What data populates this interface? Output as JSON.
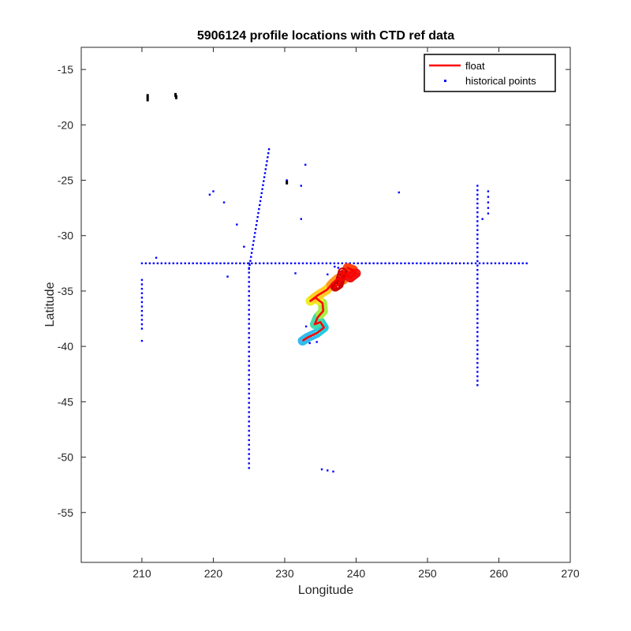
{
  "chart_data": {
    "type": "scatter",
    "title": "5906124 profile locations with CTD ref data",
    "xlabel": "Longitude",
    "ylabel": "Latitude",
    "xlim": [
      201.5,
      270
    ],
    "ylim": [
      -59.5,
      -13
    ],
    "xticks": [
      210,
      220,
      230,
      240,
      250,
      260,
      270
    ],
    "yticks": [
      -15,
      -20,
      -25,
      -30,
      -35,
      -40,
      -45,
      -50,
      -55
    ],
    "grid": false,
    "legend": {
      "placement": "top-right",
      "entries": [
        {
          "label": "float",
          "marker": "line",
          "color": "#ff0000"
        },
        {
          "label": "historical points",
          "marker": "dot",
          "color": "#0000ff"
        }
      ]
    },
    "series": [
      {
        "name": "float",
        "color": "#ff0000",
        "points": [
          [
            232.5,
            -39.5
          ],
          [
            233.2,
            -39.2
          ],
          [
            234.5,
            -38.8
          ],
          [
            235.5,
            -38.3
          ],
          [
            235.0,
            -37.8
          ],
          [
            234.2,
            -38.0
          ],
          [
            234.6,
            -37.4
          ],
          [
            235.4,
            -36.8
          ],
          [
            235.3,
            -36.1
          ],
          [
            234.3,
            -35.6
          ],
          [
            233.6,
            -35.9
          ],
          [
            234.6,
            -35.4
          ],
          [
            235.9,
            -34.9
          ],
          [
            236.7,
            -34.3
          ],
          [
            237.4,
            -33.9
          ],
          [
            238.2,
            -34.0
          ],
          [
            238.9,
            -33.5
          ],
          [
            239.6,
            -33.1
          ],
          [
            238.8,
            -32.9
          ],
          [
            240.0,
            -33.4
          ],
          [
            239.2,
            -33.8
          ],
          [
            238.1,
            -33.3
          ],
          [
            237.6,
            -34.4
          ],
          [
            236.9,
            -34.7
          ]
        ]
      },
      {
        "name": "historical points",
        "color": "#0000ff",
        "zonal_line": {
          "lat": -32.5,
          "lon_from": 210,
          "lon_to": 264.2,
          "step": 0.55
        },
        "meridional_lines": [
          {
            "lon": 225,
            "lat_from": -32.5,
            "lat_to": -51,
            "step": 0.42
          },
          {
            "lon": 257,
            "lat_from": -25.5,
            "lat_to": -43.8,
            "step": 0.4
          },
          {
            "lon": 210,
            "lat_from": -34,
            "lat_to": -38.5,
            "step": 0.4
          }
        ],
        "diagonal_line": {
          "from": [
            225,
            -33
          ],
          "to": [
            227.8,
            -22.2
          ],
          "n": 30
        },
        "points": [
          [
            210,
            -39.5
          ],
          [
            212,
            -32
          ],
          [
            219.5,
            -26.3
          ],
          [
            220,
            -26
          ],
          [
            221.5,
            -27
          ],
          [
            223.3,
            -29
          ],
          [
            224.3,
            -31
          ],
          [
            222,
            -33.7
          ],
          [
            230.3,
            -25
          ],
          [
            232.3,
            -25.5
          ],
          [
            232.9,
            -23.6
          ],
          [
            232.3,
            -28.5
          ],
          [
            231.5,
            -33.4
          ],
          [
            246,
            -26.1
          ],
          [
            257.7,
            -28.5
          ],
          [
            258.5,
            -26
          ],
          [
            258.5,
            -26.5
          ],
          [
            258.5,
            -27
          ],
          [
            258.5,
            -27.5
          ],
          [
            258.5,
            -28
          ],
          [
            235.2,
            -51.1
          ],
          [
            236,
            -51.2
          ],
          [
            236.8,
            -51.3
          ],
          [
            233,
            -38.2
          ],
          [
            234,
            -38.3
          ],
          [
            233.5,
            -39.7
          ],
          [
            234.5,
            -39.6
          ],
          [
            237,
            -32.8
          ],
          [
            237.5,
            -32.9
          ],
          [
            236,
            -33.5
          ]
        ]
      },
      {
        "name": "",
        "color": "#000000",
        "points": [
          [
            210.8,
            -17.4
          ],
          [
            210.8,
            -17.7
          ],
          [
            214.7,
            -17.3
          ],
          [
            214.8,
            -17.5
          ],
          [
            230.3,
            -25.2
          ]
        ]
      }
    ]
  }
}
